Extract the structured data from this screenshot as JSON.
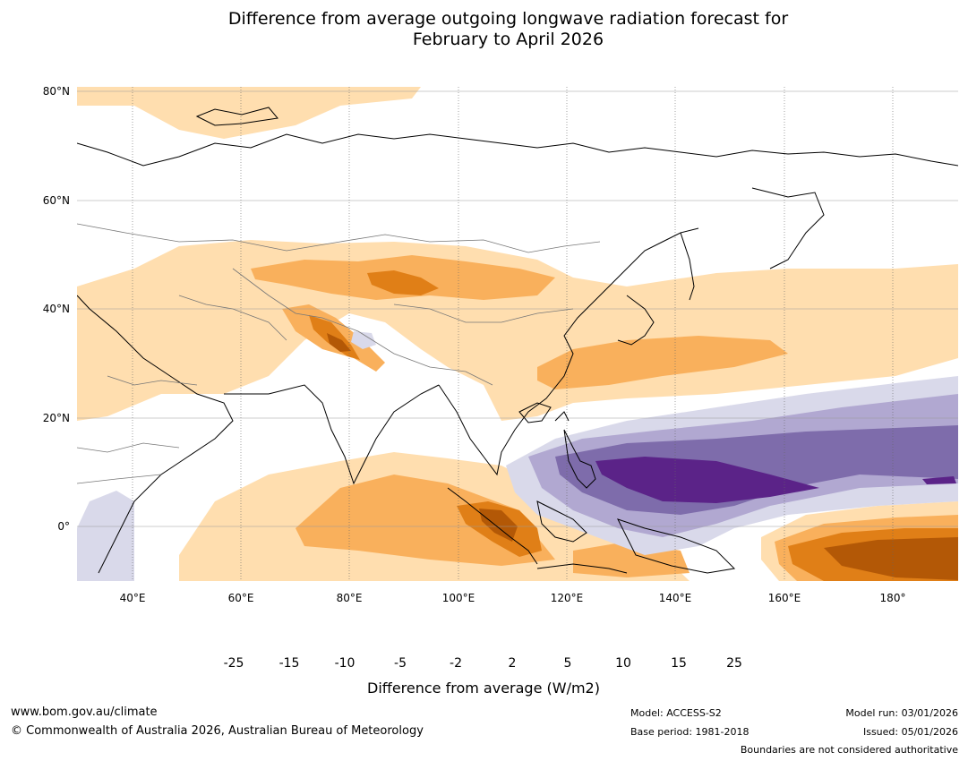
{
  "title": {
    "line1": "Difference from average outgoing longwave radiation forecast for",
    "line2": "February to April 2026"
  },
  "map": {
    "region": "Asia and western Pacific",
    "lat_labels": [
      "80°N",
      "60°N",
      "40°N",
      "20°N",
      "0°"
    ],
    "lon_labels": [
      "40°E",
      "60°E",
      "80°E",
      "100°E",
      "120°E",
      "140°E",
      "160°E",
      "180°"
    ]
  },
  "colorbar": {
    "ticks": [
      "-25",
      "-15",
      "-10",
      "-5",
      "-2",
      "2",
      "5",
      "10",
      "15",
      "25"
    ],
    "colors": [
      "#3f0f56",
      "#5b2388",
      "#7e6cab",
      "#b1a8d1",
      "#d9d9ea",
      "#ffffff",
      "#ffdeaf",
      "#f9b05c",
      "#e07f17",
      "#b35806",
      "#7f3b08"
    ],
    "label": "Difference from average (W/m2)"
  },
  "footer": {
    "website": "www.bom.gov.au/climate",
    "copyright": "© Commonwealth of Australia 2026, Australian Bureau of Meteorology",
    "model": "Model: ACCESS-S2",
    "base_period": "Base period: 1981-2018",
    "model_run": "Model run: 03/01/2026",
    "issued": "Issued: 05/01/2026",
    "disclaimer": "Boundaries are not considered authoritative"
  }
}
